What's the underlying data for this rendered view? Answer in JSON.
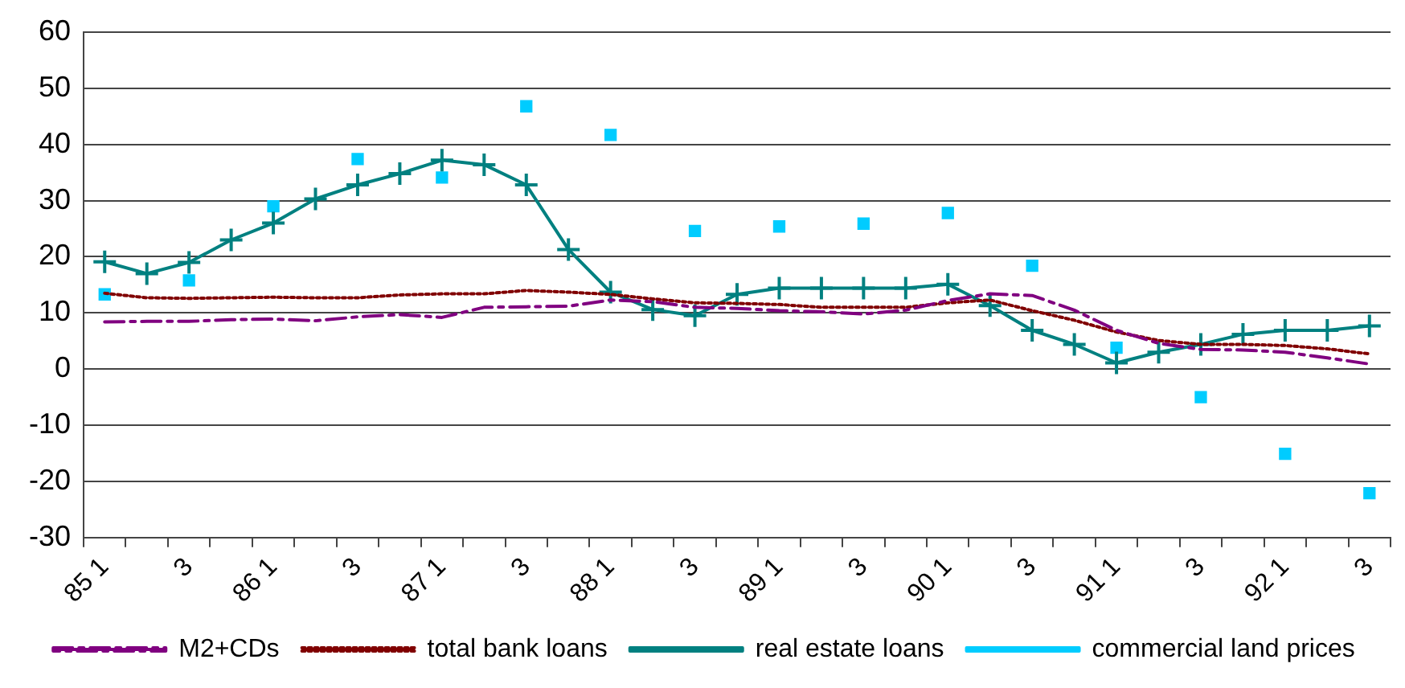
{
  "chart_data": {
    "type": "line",
    "categories": [
      "85 1",
      null,
      "3",
      null,
      "86 1",
      null,
      "3",
      null,
      "87 1",
      null,
      "3",
      null,
      "88 1",
      null,
      "3",
      null,
      "89 1",
      null,
      "3",
      null,
      "90 1",
      null,
      "3",
      null,
      "91 1",
      null,
      "3",
      null,
      "92 1",
      null,
      "3"
    ],
    "series": [
      {
        "name": "M2+CDs",
        "color": "#800080",
        "line_style": "dashed",
        "marker": "none",
        "values": [
          8.4,
          8.5,
          8.5,
          8.8,
          8.9,
          8.6,
          9.3,
          9.7,
          9.2,
          11,
          11.1,
          11.2,
          12.3,
          12,
          11,
          10.8,
          10.4,
          10.2,
          9.8,
          10.5,
          12.2,
          13.4,
          13.1,
          10.5,
          6.9,
          4.6,
          3.5,
          3.4,
          3,
          2,
          0.9
        ]
      },
      {
        "name": "total bank loans",
        "color": "#800000",
        "line_style": "dotted",
        "marker": "none",
        "values": [
          13.5,
          12.7,
          12.6,
          12.7,
          12.8,
          12.7,
          12.7,
          13.2,
          13.4,
          13.4,
          14,
          13.7,
          13.3,
          12.5,
          11.8,
          11.7,
          11.5,
          11,
          11,
          11,
          11.8,
          12.3,
          10.4,
          8.7,
          6.6,
          5.1,
          4.4,
          4.4,
          4.2,
          3.6,
          2.7
        ]
      },
      {
        "name": "real estate loans",
        "color": "#008080",
        "line_style": "solid",
        "marker": "cross",
        "values": [
          19.1,
          17,
          19,
          23,
          26,
          30.3,
          32.8,
          34.8,
          37.2,
          36.4,
          32.8,
          21.3,
          13.7,
          10.6,
          9.5,
          13.3,
          14.4,
          14.4,
          14.4,
          14.4,
          15.1,
          11.3,
          6.9,
          4.4,
          1.1,
          3,
          4.4,
          6.2,
          6.9,
          6.9,
          7.7
        ]
      },
      {
        "name": "commercial land prices",
        "color": "#00ccff",
        "line_style": "solid",
        "marker": "square",
        "values": [
          13.3,
          null,
          15.8,
          null,
          29,
          null,
          37.4,
          null,
          34.1,
          null,
          46.8,
          null,
          41.7,
          null,
          24.6,
          null,
          25.4,
          null,
          25.9,
          null,
          27.8,
          null,
          18.4,
          null,
          3.8,
          null,
          -5,
          null,
          -15.1,
          null,
          -22.1
        ]
      }
    ],
    "ylim": [
      -30,
      60
    ],
    "yticks": [
      -30,
      -20,
      -10,
      0,
      10,
      20,
      30,
      40,
      50,
      60
    ],
    "grid": "y",
    "legend": "bottom"
  }
}
